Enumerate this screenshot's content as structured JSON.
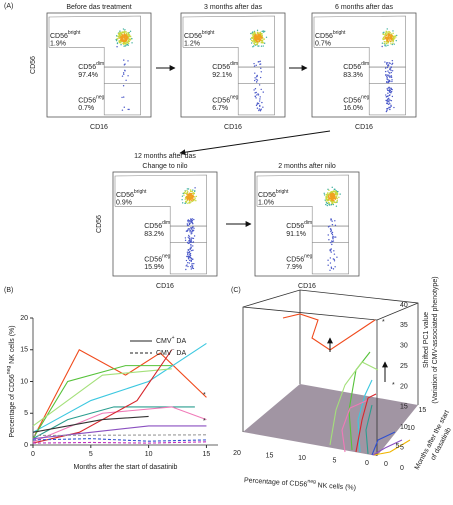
{
  "panel_a": {
    "label": "(A)",
    "x_label": "CD16",
    "y_label": "CD56",
    "plots": [
      {
        "title": "Before das treatment",
        "gates": [
          {
            "base": "CD56",
            "sup": "bright",
            "value": "1.9%"
          },
          {
            "base": "CD56",
            "sup": "dim",
            "value": "97.4%"
          },
          {
            "base": "CD56",
            "sup": "neg",
            "value": "0.7%"
          }
        ]
      },
      {
        "title": "3 months after das",
        "gates": [
          {
            "base": "CD56",
            "sup": "bright",
            "value": "1.2%"
          },
          {
            "base": "CD56",
            "sup": "dim",
            "value": "92.1%"
          },
          {
            "base": "CD56",
            "sup": "neg",
            "value": "6.7%"
          }
        ]
      },
      {
        "title": "6 months after das",
        "gates": [
          {
            "base": "CD56",
            "sup": "bright",
            "value": "0.7%"
          },
          {
            "base": "CD56",
            "sup": "dim",
            "value": "83.3%"
          },
          {
            "base": "CD56",
            "sup": "neg",
            "value": "16.0%"
          }
        ]
      },
      {
        "title": "12 months after das",
        "subtitle": "Change to nilo",
        "gates": [
          {
            "base": "CD56",
            "sup": "bright",
            "value": "0.9%"
          },
          {
            "base": "CD56",
            "sup": "dim",
            "value": "83.2%"
          },
          {
            "base": "CD56",
            "sup": "neg",
            "value": "15.9%"
          }
        ]
      },
      {
        "title": "2 months after nilo",
        "gates": [
          {
            "base": "CD56",
            "sup": "bright",
            "value": "1.0%"
          },
          {
            "base": "CD56",
            "sup": "dim",
            "value": "91.1%"
          },
          {
            "base": "CD56",
            "sup": "neg",
            "value": "7.9%"
          }
        ]
      }
    ]
  },
  "panel_b": {
    "label": "(B)",
    "type": "line",
    "y_label": {
      "pre": "Percentage of CD56",
      "sup": "neg",
      "post": " NK cells (%)"
    },
    "x_label": "Months after the start of dasatinib",
    "xlim": [
      0,
      16
    ],
    "xticks": [
      0,
      5,
      10,
      15
    ],
    "ylim": [
      0,
      20
    ],
    "yticks": [
      0,
      5,
      10,
      15,
      20
    ],
    "legend": [
      {
        "base": "CMV",
        "sup": "+",
        "rest": " DA",
        "dashed": false
      },
      {
        "base": "CMV",
        "sup": "−",
        "rest": " DA",
        "dashed": true
      }
    ],
    "annotations": [
      "*",
      "*"
    ],
    "series": [
      {
        "color": "#f04a1c",
        "dashed": false,
        "x": [
          0,
          4,
          8,
          11,
          15
        ],
        "values": [
          1,
          15,
          11,
          14.5,
          7.5
        ]
      },
      {
        "color": "#3cc8e0",
        "dashed": false,
        "x": [
          0,
          5,
          10,
          15
        ],
        "values": [
          2,
          7,
          10,
          16
        ]
      },
      {
        "color": "#56c23a",
        "dashed": false,
        "x": [
          0,
          3,
          8,
          12
        ],
        "values": [
          1,
          10,
          12.5,
          12.5
        ]
      },
      {
        "color": "#a4e07a",
        "dashed": false,
        "x": [
          0,
          6,
          12
        ],
        "values": [
          3,
          11,
          12
        ]
      },
      {
        "color": "#2a9d8f",
        "dashed": false,
        "x": [
          0,
          3,
          7,
          14
        ],
        "values": [
          1,
          4,
          6,
          6
        ]
      },
      {
        "color": "#f07ab8",
        "dashed": false,
        "x": [
          0,
          6,
          12,
          15
        ],
        "values": [
          0.5,
          5,
          6,
          4
        ]
      },
      {
        "color": "#d6262c",
        "dashed": false,
        "x": [
          0,
          4,
          9,
          12
        ],
        "values": [
          0.3,
          2,
          7,
          15
        ]
      },
      {
        "color": "#8a4fc0",
        "dashed": false,
        "x": [
          0,
          5,
          10,
          15
        ],
        "values": [
          1,
          2,
          3,
          3
        ]
      },
      {
        "color": "#333333",
        "dashed": false,
        "x": [
          0,
          6,
          10
        ],
        "values": [
          2,
          4,
          4.5
        ]
      },
      {
        "color": "#3050d0",
        "dashed": true,
        "x": [
          0,
          5,
          10,
          15
        ],
        "values": [
          0.8,
          1,
          0.6,
          0.8
        ]
      },
      {
        "color": "#c030c0",
        "dashed": true,
        "x": [
          0,
          5,
          10,
          15
        ],
        "values": [
          0.3,
          0.4,
          0.3,
          0.5
        ]
      },
      {
        "color": "#999999",
        "dashed": true,
        "x": [
          0,
          15
        ],
        "values": [
          1.5,
          1.6
        ]
      }
    ]
  },
  "panel_c": {
    "label": "(C)",
    "z_label": "Shifted PC1 value",
    "z_label_2": "(Variation of CMV-associated phenotype)",
    "x_label": {
      "pre": "Percentage of CD56",
      "sup": "neg",
      "post": " NK cells (%)"
    },
    "y_label": "Months after the start",
    "y_label_2": "of dasatinib",
    "zticks": [
      0,
      5,
      10,
      15,
      20,
      25,
      30,
      35,
      40
    ],
    "xticks": [
      20,
      15,
      10,
      5,
      0
    ],
    "yticks": [
      0,
      5,
      10,
      15
    ],
    "annotations": [
      "*",
      "*"
    ]
  }
}
